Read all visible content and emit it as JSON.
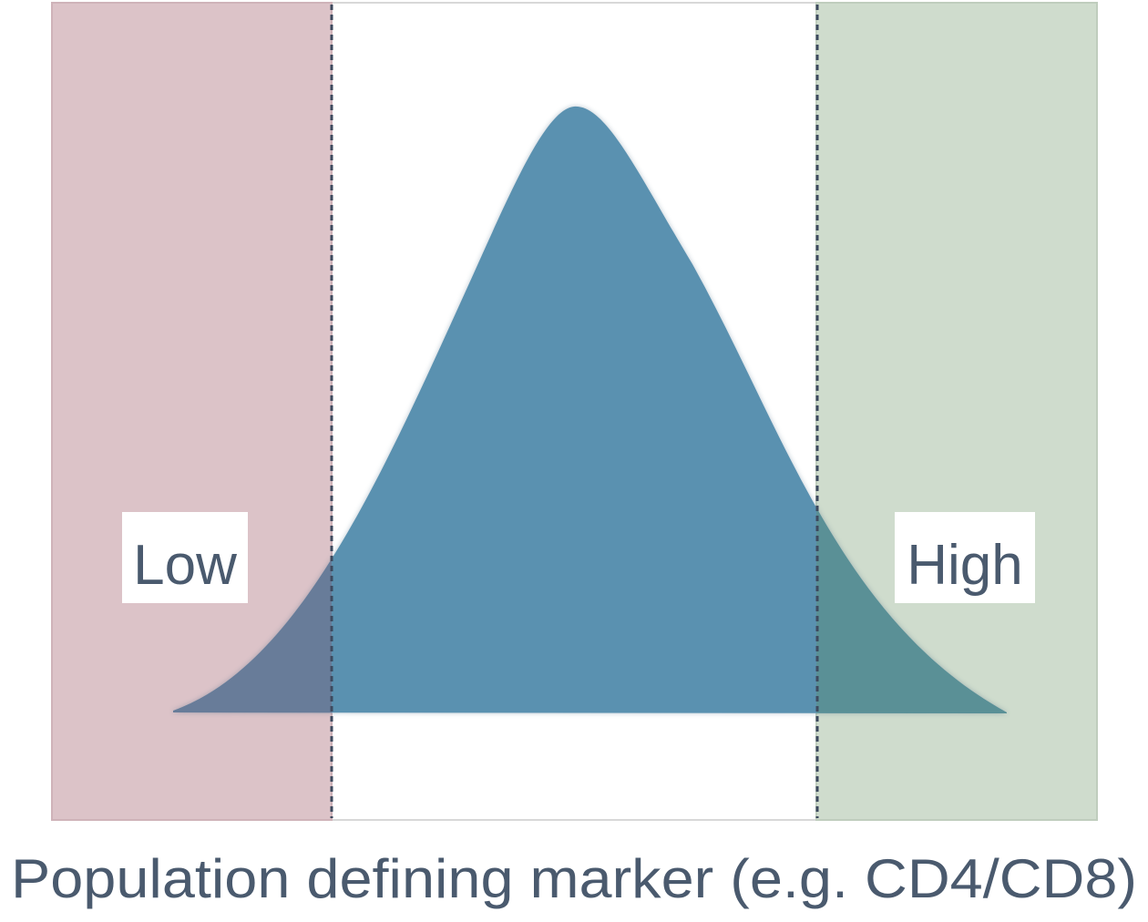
{
  "labels": {
    "low": "Low",
    "high": "High",
    "axis": "Population defining marker (e.g. CD4/CD8)"
  },
  "colors": {
    "low_region": "#dcc3c8",
    "high_region": "#cfdccd",
    "curve": "#5a91b0",
    "text": "#4a5a6e",
    "divider": "#3e4a5e",
    "frame": "#d8d8d8"
  }
}
